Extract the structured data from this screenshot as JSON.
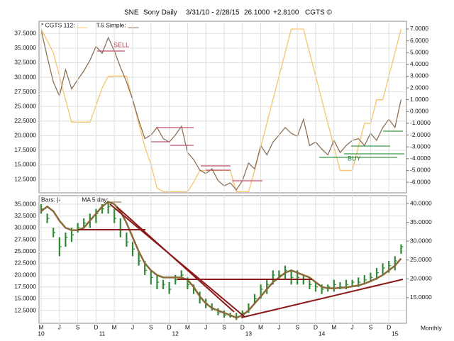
{
  "header": {
    "symbol": "SNE",
    "name": "Sony Daily",
    "range": "3/31/10 - 2/28/15",
    "last": "26.1000",
    "change": "+2.8100",
    "source": "CGTS ©"
  },
  "chart_data": [
    {
      "type": "line",
      "annotations": [
        {
          "text": "SELL"
        },
        {
          "text": "BUY"
        }
      ],
      "ylim": [
        10.2,
        39.6
      ],
      "yticks": [
        {
          "value": 12.5,
          "label": "12.5000"
        },
        {
          "value": 15,
          "label": "15.0000"
        },
        {
          "value": 17.5,
          "label": "17.5000"
        },
        {
          "value": 20,
          "label": "20.0000"
        },
        {
          "value": 22.5,
          "label": "22.5000"
        },
        {
          "value": 25,
          "label": "25.0000"
        },
        {
          "value": 27.5,
          "label": "27.5000"
        },
        {
          "value": 30,
          "label": "30.0000"
        },
        {
          "value": 32.5,
          "label": "32.5000"
        },
        {
          "value": 35,
          "label": "35.0000"
        },
        {
          "value": 37.5,
          "label": "37.5000"
        }
      ],
      "y2lim": [
        -6.9,
        7.66
      ],
      "y2ticks": [
        {
          "value": -6,
          "label": "-6.0000"
        },
        {
          "value": -5,
          "label": "-5.0000"
        },
        {
          "value": -4,
          "label": "-4.0000"
        },
        {
          "value": -3,
          "label": "-3.0000"
        },
        {
          "value": -2,
          "label": "-2.0000"
        },
        {
          "value": -1,
          "label": "-1.0000"
        },
        {
          "value": 0,
          "label": "0.0000"
        },
        {
          "value": 1,
          "label": "1.0000"
        },
        {
          "value": 2,
          "label": "2.0000"
        },
        {
          "value": 3,
          "label": "3.0000"
        },
        {
          "value": 4,
          "label": "4.0000"
        },
        {
          "value": 5,
          "label": "5.0000"
        },
        {
          "value": 6,
          "label": "6.0000"
        },
        {
          "value": 7,
          "label": "7.0000"
        }
      ],
      "grid": true,
      "series": [
        {
          "name": "* CGTS 112:",
          "color": "#f7c46c",
          "axis": "y2",
          "values": [
            7.0,
            6.0,
            5.0,
            3.0,
            1.0,
            -0.9,
            -0.9,
            -0.9,
            -0.9,
            0.5,
            2.0,
            3.0,
            3.0,
            3.0,
            3.0,
            1.0,
            -1.0,
            -3.0,
            -4.5,
            -6.5,
            -6.8,
            -6.8,
            -6.8,
            -6.8,
            -6.8,
            -6.0,
            -5.0,
            -5.0,
            -5.0,
            -5.0,
            -5.0,
            -5.0,
            -6.8,
            -6.8,
            -6.8,
            -5.0,
            -3.0,
            -1.0,
            1.0,
            3.0,
            5.0,
            7.0,
            7.0,
            7.0,
            5.0,
            3.0,
            1.0,
            -1.0,
            -3.0,
            -5.0,
            -5.0,
            -5.0,
            -3.0,
            -1.0,
            -1.0,
            1.0,
            1.0,
            3.0,
            5.0,
            7.0
          ]
        },
        {
          "name": "T.5 Simple:",
          "color": "#8c7158",
          "values": [
            38.1,
            33.5,
            29.2,
            26.8,
            31.3,
            28.0,
            29.6,
            31.1,
            32.9,
            35.3,
            34.1,
            36.8,
            34.5,
            31.7,
            29.2,
            26.2,
            22.6,
            19.5,
            20.1,
            21.4,
            19.5,
            18.9,
            20.1,
            21.6,
            17.1,
            15.9,
            14.1,
            13.5,
            14.3,
            12.3,
            11.4,
            11.9,
            10.7,
            12.3,
            15.3,
            14.3,
            18.3,
            16.7,
            18.9,
            20.1,
            21.4,
            20.4,
            19.9,
            22.8,
            18.3,
            18.9,
            17.7,
            16.7,
            19.2,
            17.1,
            18.3,
            19.2,
            19.5,
            18.3,
            20.4,
            19.2,
            21.4,
            22.8,
            21.4,
            26.2
          ]
        }
      ]
    },
    {
      "type": "ohlc",
      "categories": [
        "M",
        null,
        null,
        "J",
        null,
        null,
        "S",
        null,
        null,
        "D",
        null,
        null,
        "M",
        null,
        null,
        "J",
        null,
        null,
        "S",
        null,
        null,
        "D",
        null,
        null,
        "M",
        null,
        null,
        "J",
        null,
        null,
        "S",
        null,
        null,
        "D",
        null,
        null,
        "M",
        null,
        null,
        "J",
        null,
        null,
        "S",
        null,
        null,
        "D",
        null,
        null,
        "M",
        null,
        null,
        "J",
        null,
        null,
        "S",
        null,
        null,
        "D",
        null,
        null
      ],
      "year_labels": [
        "10",
        null,
        null,
        null,
        null,
        null,
        null,
        null,
        null,
        null,
        "11",
        null,
        null,
        null,
        null,
        null,
        null,
        null,
        null,
        null,
        null,
        null,
        "12",
        null,
        null,
        null,
        null,
        null,
        null,
        null,
        null,
        null,
        null,
        null,
        "13",
        null,
        null,
        null,
        null,
        null,
        null,
        null,
        null,
        null,
        null,
        null,
        "14",
        null,
        null,
        null,
        null,
        null,
        null,
        null,
        null,
        null,
        null,
        null,
        "15",
        null
      ],
      "period": "Monthly",
      "ylim": [
        9.8,
        36.8
      ],
      "yticks": [
        {
          "value": 12.5,
          "label": "12.5000"
        },
        {
          "value": 15,
          "label": "15.0000"
        },
        {
          "value": 17.5,
          "label": "17.5000"
        },
        {
          "value": 20,
          "label": "20.0000"
        },
        {
          "value": 22.5,
          "label": "22.5000"
        },
        {
          "value": 25,
          "label": "25.0000"
        },
        {
          "value": 27.5,
          "label": "27.5000"
        },
        {
          "value": 30,
          "label": "30.0000"
        },
        {
          "value": 32.5,
          "label": "32.5000"
        },
        {
          "value": 35,
          "label": "35.0000"
        }
      ],
      "y2lim": [
        8.2,
        42.07
      ],
      "y2ticks": [
        {
          "value": 15,
          "label": "15.0000"
        },
        {
          "value": 20,
          "label": "20.0000"
        },
        {
          "value": 25,
          "label": "25.0000"
        },
        {
          "value": 30,
          "label": "30.0000"
        },
        {
          "value": 35,
          "label": "35.0000"
        },
        {
          "value": 40,
          "label": "40.0000"
        }
      ],
      "grid": true,
      "series": [
        {
          "name": "Bars: |-",
          "color": "#2f8a35",
          "high": [
            35,
            33,
            30,
            28,
            29,
            30,
            31,
            32,
            33,
            34,
            35,
            35.5,
            34,
            32,
            29,
            27,
            25,
            23,
            21,
            20,
            19,
            18.5,
            20,
            21,
            19.5,
            18,
            16.5,
            15,
            14,
            13,
            12.5,
            12,
            12,
            12.5,
            14,
            16,
            18,
            19,
            21,
            21,
            22,
            21,
            21,
            20,
            19.5,
            18.5,
            18,
            18,
            19,
            18.5,
            19,
            19,
            19.5,
            20,
            20.5,
            21.5,
            22.5,
            23,
            24,
            26.5
          ],
          "low": [
            33,
            31,
            28,
            24,
            26,
            27,
            29,
            30,
            30,
            31,
            33,
            33,
            31,
            28,
            26,
            24,
            22,
            20,
            18,
            17,
            17,
            16,
            18,
            19,
            17,
            16,
            14,
            13,
            12.5,
            11.5,
            11,
            11,
            10.5,
            11,
            12,
            14,
            15,
            16,
            18,
            19,
            19,
            18,
            18,
            18,
            17,
            16.5,
            16,
            16.5,
            16.5,
            17,
            17,
            17.5,
            17.5,
            18,
            18.5,
            19,
            20,
            20.5,
            21,
            24.5
          ],
          "close": [
            34,
            32,
            29,
            26,
            28,
            28.5,
            30,
            31,
            32,
            33,
            34,
            34.5,
            32,
            29.5,
            27,
            25.5,
            23,
            21,
            19.5,
            18.5,
            18,
            17,
            19,
            20,
            18,
            17,
            15,
            14,
            13,
            12,
            11.5,
            11.5,
            11,
            12,
            13,
            15,
            17,
            18,
            20,
            20,
            21,
            19.5,
            19.5,
            19,
            18,
            17.5,
            17,
            17.5,
            18,
            17.5,
            18,
            18.5,
            18.5,
            19,
            19.5,
            20.5,
            21.5,
            22,
            23,
            26
          ]
        },
        {
          "name": "MA 5 day:",
          "color": "#8b6a3a",
          "values": [
            33.5,
            34.5,
            33.5,
            31.5,
            30,
            29.5,
            29.5,
            30,
            31.5,
            33,
            34.5,
            35.5,
            35,
            33.5,
            31,
            28,
            25,
            22.5,
            21,
            20,
            19.5,
            19.5,
            19.5,
            19.5,
            19,
            17.5,
            15.5,
            14,
            13,
            12.5,
            12,
            11.5,
            11,
            11.5,
            12.5,
            14,
            15.5,
            17,
            18.5,
            19.5,
            20.5,
            21,
            20.5,
            20,
            19.5,
            18.5,
            17.5,
            17.2,
            17.2,
            17.3,
            17.4,
            17.6,
            17.8,
            18.2,
            18.7,
            19.3,
            20,
            21,
            22,
            23.5
          ]
        }
      ]
    }
  ]
}
